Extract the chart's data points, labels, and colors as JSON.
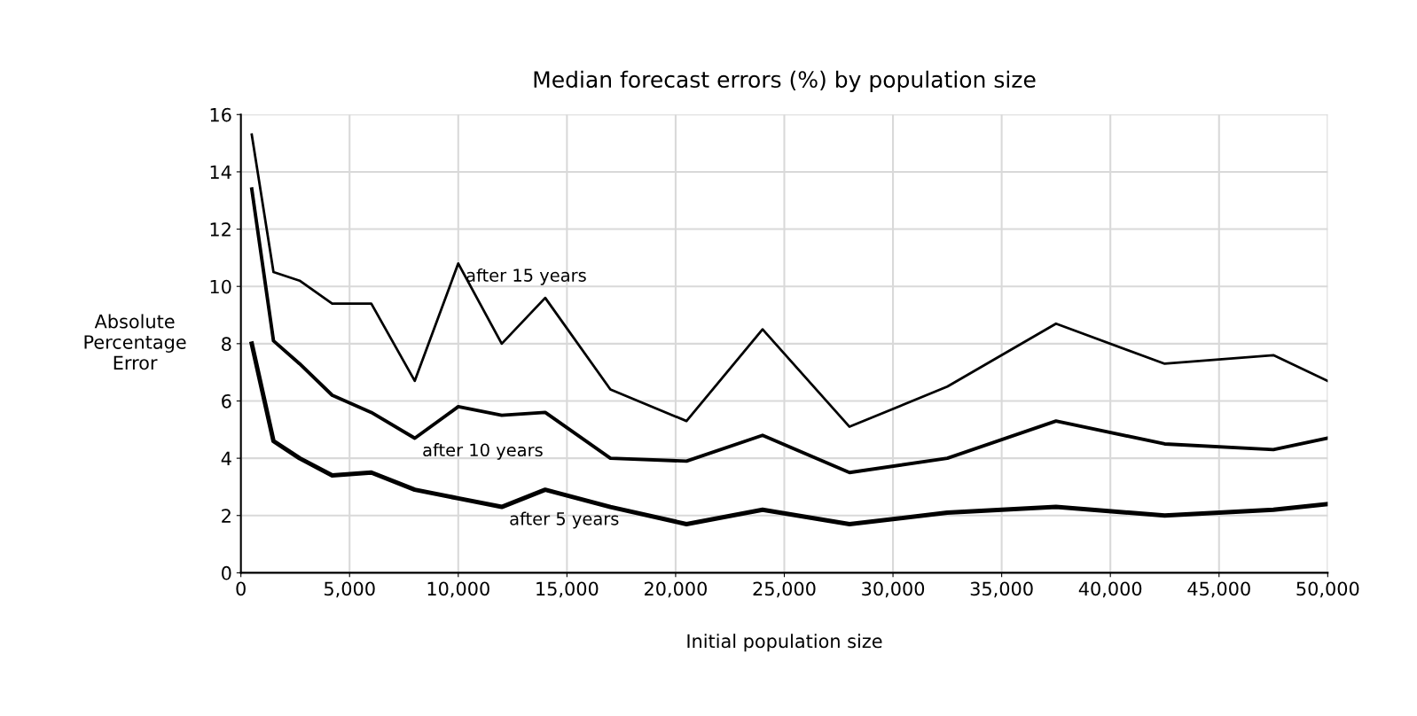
{
  "chart_data": {
    "type": "line",
    "title": "Median forecast errors (%) by population size",
    "xlabel": "Initial population size",
    "ylabel": "Absolute\nPercentage\nError",
    "x": [
      500,
      1500,
      2700,
      4200,
      6000,
      8000,
      10000,
      12000,
      14000,
      17000,
      20500,
      24000,
      28000,
      32500,
      37500,
      42500,
      47500,
      50000
    ],
    "series": [
      {
        "color": "#000000",
        "values": [
          15.3,
          10.5,
          10.2,
          9.4,
          9.4,
          6.7,
          10.8,
          8.0,
          9.6,
          6.4,
          5.3,
          8.5,
          5.1,
          6.5,
          8.7,
          7.3,
          7.6,
          6.7
        ]
      },
      {
        "color": "#000000",
        "values": [
          13.4,
          8.1,
          7.3,
          6.2,
          5.6,
          4.7,
          5.8,
          5.5,
          5.6,
          4.0,
          3.9,
          4.8,
          3.5,
          4.0,
          5.3,
          4.5,
          4.3,
          4.7
        ]
      },
      {
        "color": "#000000",
        "values": [
          8.0,
          4.6,
          4.0,
          3.4,
          3.5,
          2.9,
          2.6,
          2.3,
          2.9,
          2.3,
          1.7,
          2.2,
          1.7,
          2.1,
          2.3,
          2.0,
          2.2,
          2.4
        ]
      }
    ],
    "annotations": [
      {
        "text": "after 15 years",
        "x": 10000,
        "y": 10.8
      },
      {
        "text": "after 10 years",
        "x": 8000,
        "y": 4.7
      },
      {
        "text": "after 5 years",
        "x": 12000,
        "y": 2.3
      }
    ],
    "xlim": [
      0,
      50000
    ],
    "xticks": [
      {
        "value": 0,
        "label": "0"
      },
      {
        "value": 5000,
        "label": "5,000"
      },
      {
        "value": 10000,
        "label": "10,000"
      },
      {
        "value": 15000,
        "label": "15,000"
      },
      {
        "value": 20000,
        "label": "20,000"
      },
      {
        "value": 25000,
        "label": "25,000"
      },
      {
        "value": 30000,
        "label": "30,000"
      },
      {
        "value": 35000,
        "label": "35,000"
      },
      {
        "value": 40000,
        "label": "40,000"
      },
      {
        "value": 45000,
        "label": "45,000"
      },
      {
        "value": 50000,
        "label": "50,000"
      }
    ],
    "ylim": [
      0,
      16
    ],
    "yticks": [
      0,
      2,
      4,
      6,
      8,
      10,
      12,
      14,
      16
    ],
    "grid": true,
    "legend": false,
    "marker": "none",
    "line_style": "solid"
  }
}
